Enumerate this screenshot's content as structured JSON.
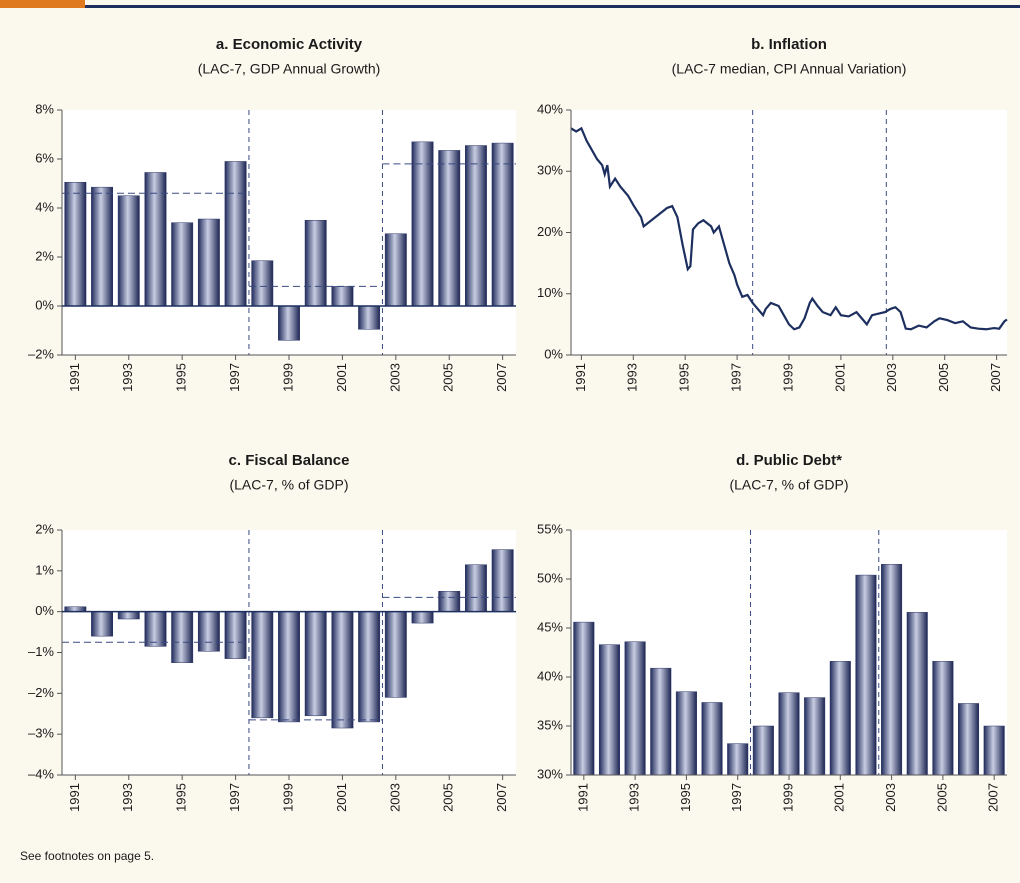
{
  "chart_data": [
    {
      "type": "bar",
      "title": "a. Economic Activity",
      "subtitle": "(LAC-7, GDP Annual Growth)",
      "color": "#2b3566",
      "x": [
        1991,
        1992,
        1993,
        1994,
        1995,
        1996,
        1997,
        1998,
        1999,
        2000,
        2001,
        2002,
        2003,
        2004,
        2005,
        2006,
        2007
      ],
      "values": [
        5.05,
        4.85,
        4.5,
        5.45,
        3.4,
        3.55,
        5.9,
        1.85,
        -1.4,
        3.5,
        0.8,
        -0.95,
        2.95,
        6.7,
        6.35,
        6.55,
        6.65
      ],
      "xlim": [
        1990.5,
        2007.5
      ],
      "xticks": [
        1991,
        1993,
        1995,
        1997,
        1999,
        2001,
        2003,
        2005,
        2007
      ],
      "ylim": [
        -2,
        8
      ],
      "yticks": [
        {
          "value": -2,
          "label": "–2%"
        },
        {
          "value": 0,
          "label": "0%"
        },
        {
          "value": 2,
          "label": "2%"
        },
        {
          "value": 4,
          "label": "4%"
        },
        {
          "value": 6,
          "label": "6%"
        },
        {
          "value": 8,
          "label": "8%"
        }
      ],
      "averages": [
        {
          "start": 1990.5,
          "end": 1997.5,
          "value": 4.6
        },
        {
          "start": 1997.5,
          "end": 2002.5,
          "value": 0.8
        },
        {
          "start": 2002.5,
          "end": 2007.5,
          "value": 5.8
        }
      ],
      "dividers": [
        1997.5,
        2002.5
      ]
    },
    {
      "type": "line",
      "title": "b. Inflation",
      "subtitle": "(LAC-7 median, CPI Annual Variation)",
      "color": "#1c2f5e",
      "x": [
        1990.6,
        1990.8,
        1991.0,
        1991.2,
        1991.4,
        1991.6,
        1991.8,
        1991.9,
        1992.0,
        1992.1,
        1992.3,
        1992.5,
        1992.8,
        1993.0,
        1993.3,
        1993.4,
        1993.7,
        1994.0,
        1994.3,
        1994.5,
        1994.7,
        1994.9,
        1995.1,
        1995.2,
        1995.3,
        1995.5,
        1995.7,
        1996.0,
        1996.1,
        1996.3,
        1996.5,
        1996.7,
        1996.9,
        1997.0,
        1997.2,
        1997.4,
        1997.6,
        1997.8,
        1998.0,
        1998.1,
        1998.3,
        1998.6,
        1998.8,
        1999.0,
        1999.2,
        1999.4,
        1999.6,
        1999.8,
        1999.9,
        2000.1,
        2000.3,
        2000.6,
        2000.8,
        2001.0,
        2001.3,
        2001.6,
        2001.8,
        2002.0,
        2002.2,
        2002.5,
        2002.7,
        2002.9,
        2003.1,
        2003.3,
        2003.5,
        2003.7,
        2004.0,
        2004.3,
        2004.6,
        2004.8,
        2005.1,
        2005.4,
        2005.7,
        2006.0,
        2006.3,
        2006.6,
        2006.9,
        2007.1,
        2007.3,
        2007.4
      ],
      "values": [
        37,
        36.5,
        37,
        35,
        33.5,
        32,
        31,
        29.5,
        31,
        27.5,
        28.8,
        27.5,
        26,
        24.5,
        22.5,
        21,
        22,
        23,
        24,
        24.3,
        22.5,
        18,
        14,
        14.5,
        20.5,
        21.5,
        22,
        21,
        20,
        21,
        18,
        15,
        13,
        11.5,
        9.5,
        9.8,
        8.5,
        7.5,
        6.5,
        7.5,
        8.5,
        8,
        6.5,
        5,
        4.2,
        4.5,
        6,
        8.5,
        9.2,
        8,
        7,
        6.5,
        7.8,
        6.5,
        6.3,
        7,
        6,
        5,
        6.5,
        6.8,
        7,
        7.5,
        7.8,
        7,
        4.3,
        4.2,
        4.8,
        4.5,
        5.5,
        6,
        5.7,
        5.2,
        5.5,
        4.5,
        4.3,
        4.2,
        4.4,
        4.3,
        5.5,
        5.8
      ],
      "xlim": [
        1990.6,
        2007.4
      ],
      "xticks": [
        1991,
        1993,
        1995,
        1997,
        1999,
        2001,
        2003,
        2005,
        2007
      ],
      "ylim": [
        0,
        40
      ],
      "yticks": [
        {
          "value": 0,
          "label": "0%"
        },
        {
          "value": 10,
          "label": "10%"
        },
        {
          "value": 20,
          "label": "20%"
        },
        {
          "value": 30,
          "label": "30%"
        },
        {
          "value": 40,
          "label": "40%"
        }
      ],
      "dividers": [
        1997.6,
        2002.75
      ]
    },
    {
      "type": "bar",
      "title": "c. Fiscal Balance",
      "subtitle": "(LAC-7, % of GDP)",
      "color": "#2b3566",
      "x": [
        1991,
        1992,
        1993,
        1994,
        1995,
        1996,
        1997,
        1998,
        1999,
        2000,
        2001,
        2002,
        2003,
        2004,
        2005,
        2006,
        2007
      ],
      "values": [
        0.12,
        -0.6,
        -0.18,
        -0.85,
        -1.25,
        -0.97,
        -1.15,
        -2.6,
        -2.7,
        -2.55,
        -2.85,
        -2.7,
        -2.1,
        -0.28,
        0.5,
        1.15,
        1.52
      ],
      "xlim": [
        1990.5,
        2007.5
      ],
      "xticks": [
        1991,
        1993,
        1995,
        1997,
        1999,
        2001,
        2003,
        2005,
        2007
      ],
      "ylim": [
        -4,
        2
      ],
      "yticks": [
        {
          "value": -4,
          "label": "–4%"
        },
        {
          "value": -3,
          "label": "–3%"
        },
        {
          "value": -2,
          "label": "–2%"
        },
        {
          "value": -1,
          "label": "–1%"
        },
        {
          "value": 0,
          "label": "0%"
        },
        {
          "value": 1,
          "label": "1%"
        },
        {
          "value": 2,
          "label": "2%"
        }
      ],
      "averages": [
        {
          "start": 1990.5,
          "end": 1997.5,
          "value": -0.75
        },
        {
          "start": 1997.5,
          "end": 2002.5,
          "value": -2.65
        },
        {
          "start": 2002.5,
          "end": 2007.5,
          "value": 0.35
        }
      ],
      "dividers": [
        1997.5,
        2002.5
      ]
    },
    {
      "type": "bar",
      "title": "d. Public Debt*",
      "subtitle": "(LAC-7, % of GDP)",
      "color": "#2b3566",
      "x": [
        1991,
        1992,
        1993,
        1994,
        1995,
        1996,
        1997,
        1998,
        1999,
        2000,
        2001,
        2002,
        2003,
        2004,
        2005,
        2006,
        2007
      ],
      "values": [
        45.6,
        43.3,
        43.6,
        40.9,
        38.5,
        37.4,
        33.2,
        35.0,
        38.4,
        37.9,
        41.6,
        50.4,
        51.5,
        46.6,
        41.6,
        37.3,
        35.0
      ],
      "xlim": [
        1990.5,
        2007.5
      ],
      "xticks": [
        1991,
        1993,
        1995,
        1997,
        1999,
        2001,
        2003,
        2005,
        2007
      ],
      "ylim": [
        30,
        55
      ],
      "yticks": [
        {
          "value": 30,
          "label": "30%"
        },
        {
          "value": 35,
          "label": "35%"
        },
        {
          "value": 40,
          "label": "40%"
        },
        {
          "value": 45,
          "label": "45%"
        },
        {
          "value": 50,
          "label": "50%"
        },
        {
          "value": 55,
          "label": "55%"
        }
      ],
      "dividers": [
        1997.5,
        2002.5
      ]
    }
  ],
  "footnote": "See footnotes on page 5."
}
